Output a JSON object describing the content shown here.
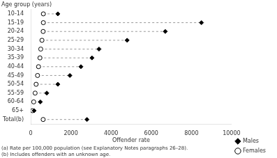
{
  "chart_data": {
    "type": "dot",
    "orientation": "horizontal",
    "xlabel": "Offender rate",
    "ylabel": "Age group (years)",
    "categories": [
      "10-14",
      "15-19",
      "20-24",
      "25-29",
      "30-34",
      "35-39",
      "40-44",
      "45-49",
      "50-54",
      "55-59",
      "60-64",
      "65+",
      "Total(b)"
    ],
    "series": [
      {
        "name": "Males",
        "color": "#000000",
        "marker": "diamond",
        "values": [
          1350,
          8500,
          6700,
          4800,
          3400,
          3050,
          2500,
          1950,
          1350,
          800,
          480,
          170,
          2800
        ]
      },
      {
        "name": "Females",
        "color": "#000000",
        "marker": "circle_open",
        "values": [
          630,
          630,
          620,
          560,
          500,
          460,
          390,
          340,
          270,
          220,
          150,
          90,
          620
        ]
      }
    ],
    "line_style": "dashed",
    "xlim": [
      0,
      10000
    ],
    "xticks": [
      0,
      2000,
      4000,
      6000,
      8000,
      10000
    ],
    "grid": false,
    "legend": "lower right",
    "annotations": [
      "(a) Rate per 100,000 population (see Explanatory Notes paragraphs 26–28).",
      "(b) Includes offenders with an unknown age."
    ]
  }
}
